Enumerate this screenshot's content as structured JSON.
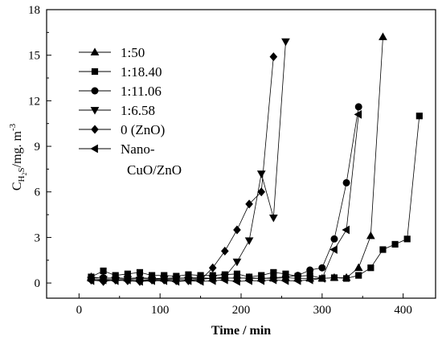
{
  "chart_data": {
    "type": "line",
    "title": "",
    "xlabel": "Time / min",
    "ylabel": {
      "main": "C",
      "subscript": "H",
      "subscript2": "2",
      "subscript3": "S",
      "unit": "/mg.  m",
      "superscript": "-3"
    },
    "xlim": [
      -40,
      440
    ],
    "ylim": [
      -1,
      18
    ],
    "xticks": [
      0,
      100,
      200,
      300,
      400
    ],
    "yticks": [
      0,
      3,
      6,
      9,
      12,
      15,
      18
    ],
    "grid": false,
    "legend_position": "top-left",
    "series": [
      {
        "name": "1:50",
        "marker": "triangle-up",
        "x": [
          15,
          30,
          45,
          60,
          75,
          90,
          105,
          120,
          135,
          150,
          165,
          180,
          195,
          210,
          225,
          240,
          255,
          270,
          285,
          300,
          315,
          330,
          345,
          360,
          375
        ],
        "y": [
          0.4,
          0.3,
          0.35,
          0.3,
          0.35,
          0.3,
          0.3,
          0.3,
          0.35,
          0.35,
          0.3,
          0.35,
          0.3,
          0.35,
          0.3,
          0.3,
          0.35,
          0.3,
          0.3,
          0.3,
          0.35,
          0.35,
          1.0,
          3.1,
          16.2
        ]
      },
      {
        "name": "1:18.40",
        "marker": "square",
        "x": [
          15,
          30,
          45,
          60,
          75,
          90,
          105,
          120,
          135,
          150,
          165,
          180,
          195,
          210,
          225,
          240,
          255,
          270,
          285,
          300,
          315,
          330,
          345,
          360,
          375,
          390,
          405,
          420
        ],
        "y": [
          0.4,
          0.8,
          0.5,
          0.6,
          0.7,
          0.5,
          0.5,
          0.45,
          0.55,
          0.5,
          0.5,
          0.55,
          0.6,
          0.4,
          0.5,
          0.7,
          0.6,
          0.45,
          0.5,
          0.3,
          0.35,
          0.3,
          0.5,
          1.0,
          2.2,
          2.55,
          2.9,
          11.0
        ]
      },
      {
        "name": "1:11.06",
        "marker": "circle",
        "x": [
          15,
          30,
          45,
          60,
          75,
          90,
          105,
          120,
          135,
          150,
          165,
          180,
          195,
          210,
          225,
          240,
          255,
          270,
          285,
          300,
          315,
          330,
          345
        ],
        "y": [
          0.3,
          0.35,
          0.3,
          0.3,
          0.3,
          0.25,
          0.3,
          0.35,
          0.3,
          0.3,
          0.3,
          0.3,
          0.35,
          0.3,
          0.3,
          0.35,
          0.4,
          0.5,
          0.85,
          1.0,
          2.9,
          6.6,
          11.6
        ]
      },
      {
        "name": "1:6.58",
        "marker": "triangle-down",
        "x": [
          15,
          30,
          45,
          60,
          75,
          90,
          105,
          120,
          135,
          150,
          165,
          180,
          195,
          210,
          225,
          240,
          255
        ],
        "y": [
          0.2,
          0.25,
          0.2,
          0.25,
          0.2,
          0.2,
          0.25,
          0.25,
          0.2,
          0.25,
          0.3,
          0.4,
          1.4,
          2.8,
          7.2,
          4.3,
          15.9
        ]
      },
      {
        "name": "0 (ZnO)",
        "marker": "diamond",
        "x": [
          15,
          30,
          45,
          60,
          75,
          90,
          105,
          120,
          135,
          150,
          165,
          180,
          195,
          210,
          225,
          240
        ],
        "y": [
          0.2,
          0.1,
          0.2,
          0.15,
          0.1,
          0.2,
          0.2,
          0.15,
          0.15,
          0.2,
          1.0,
          2.1,
          3.5,
          5.2,
          6.0,
          14.9
        ]
      },
      {
        "name": "Nano-CuO/ZnO",
        "legend_lines": [
          "Nano-",
          "CuO/ZnO"
        ],
        "marker": "triangle-left",
        "x": [
          15,
          30,
          45,
          60,
          75,
          90,
          105,
          120,
          135,
          150,
          165,
          180,
          195,
          210,
          225,
          240,
          255,
          270,
          285,
          300,
          315,
          330,
          345
        ],
        "y": [
          0.15,
          0.2,
          0.15,
          0.2,
          0.1,
          0.15,
          0.15,
          0.1,
          0.15,
          0.1,
          0.15,
          0.2,
          0.1,
          0.15,
          0.15,
          0.2,
          0.15,
          0.15,
          0.2,
          0.3,
          2.2,
          3.5,
          11.1
        ]
      }
    ]
  }
}
